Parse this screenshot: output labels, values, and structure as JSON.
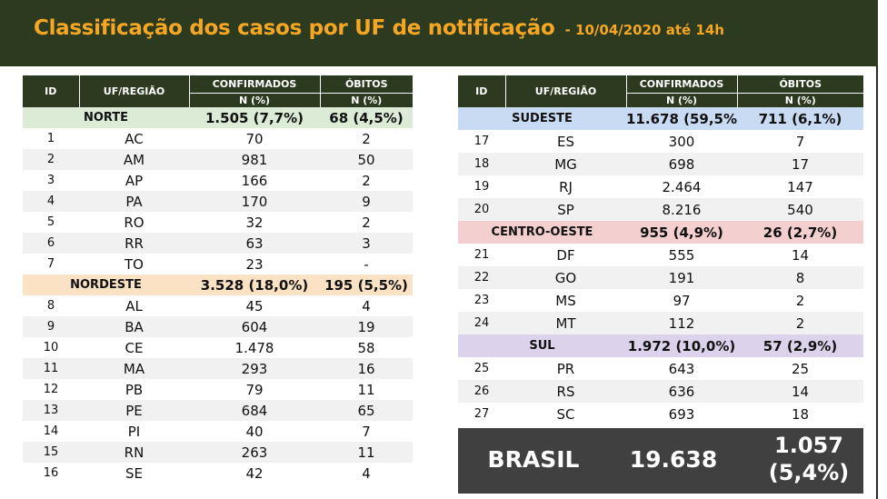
{
  "header": {
    "title": "Classificação dos casos por UF de notificação",
    "subtitle": "- 10/04/2020 até 14h"
  },
  "columns": {
    "id": "ID",
    "uf": "UF/REGIÃO",
    "confirmados": "CONFIRMADOS",
    "obitos": "ÓBITOS",
    "unit": "N (%)"
  },
  "left": {
    "norte": {
      "name": "NORTE",
      "confirmados": "1.505 (7,7%)",
      "obitos": "68 (4,5%)",
      "rows": [
        {
          "id": "1",
          "uf": "AC",
          "confirmados": "70",
          "obitos": "2"
        },
        {
          "id": "2",
          "uf": "AM",
          "confirmados": "981",
          "obitos": "50"
        },
        {
          "id": "3",
          "uf": "AP",
          "confirmados": "166",
          "obitos": "2"
        },
        {
          "id": "4",
          "uf": "PA",
          "confirmados": "170",
          "obitos": "9"
        },
        {
          "id": "5",
          "uf": "RO",
          "confirmados": "32",
          "obitos": "2"
        },
        {
          "id": "6",
          "uf": "RR",
          "confirmados": "63",
          "obitos": "3"
        },
        {
          "id": "7",
          "uf": "TO",
          "confirmados": "23",
          "obitos": "-"
        }
      ]
    },
    "nordeste": {
      "name": "NORDESTE",
      "confirmados": "3.528 (18,0%)",
      "obitos": "195 (5,5%)",
      "rows": [
        {
          "id": "8",
          "uf": "AL",
          "confirmados": "45",
          "obitos": "4"
        },
        {
          "id": "9",
          "uf": "BA",
          "confirmados": "604",
          "obitos": "19"
        },
        {
          "id": "10",
          "uf": "CE",
          "confirmados": "1.478",
          "obitos": "58"
        },
        {
          "id": "11",
          "uf": "MA",
          "confirmados": "293",
          "obitos": "16"
        },
        {
          "id": "12",
          "uf": "PB",
          "confirmados": "79",
          "obitos": "11"
        },
        {
          "id": "13",
          "uf": "PE",
          "confirmados": "684",
          "obitos": "65"
        },
        {
          "id": "14",
          "uf": "PI",
          "confirmados": "40",
          "obitos": "7"
        },
        {
          "id": "15",
          "uf": "RN",
          "confirmados": "263",
          "obitos": "11"
        },
        {
          "id": "16",
          "uf": "SE",
          "confirmados": "42",
          "obitos": "4"
        }
      ]
    }
  },
  "right": {
    "sudeste": {
      "name": "SUDESTE",
      "confirmados": "11.678 (59,5%)",
      "obitos": "711 (6,1%)",
      "rows": [
        {
          "id": "17",
          "uf": "ES",
          "confirmados": "300",
          "obitos": "7"
        },
        {
          "id": "18",
          "uf": "MG",
          "confirmados": "698",
          "obitos": "17"
        },
        {
          "id": "19",
          "uf": "RJ",
          "confirmados": "2.464",
          "obitos": "147"
        },
        {
          "id": "20",
          "uf": "SP",
          "confirmados": "8.216",
          "obitos": "540"
        }
      ]
    },
    "centro_oeste": {
      "name": "CENTRO-OESTE",
      "confirmados": "955 (4,9%)",
      "obitos": "26 (2,7%)",
      "rows": [
        {
          "id": "21",
          "uf": "DF",
          "confirmados": "555",
          "obitos": "14"
        },
        {
          "id": "22",
          "uf": "GO",
          "confirmados": "191",
          "obitos": "8"
        },
        {
          "id": "23",
          "uf": "MS",
          "confirmados": "97",
          "obitos": "2"
        },
        {
          "id": "24",
          "uf": "MT",
          "confirmados": "112",
          "obitos": "2"
        }
      ]
    },
    "sul": {
      "name": "SUL",
      "confirmados": "1.972 (10,0%)",
      "obitos": "57 (2,9%)",
      "rows": [
        {
          "id": "25",
          "uf": "PR",
          "confirmados": "643",
          "obitos": "25"
        },
        {
          "id": "26",
          "uf": "RS",
          "confirmados": "636",
          "obitos": "14"
        },
        {
          "id": "27",
          "uf": "SC",
          "confirmados": "693",
          "obitos": "18"
        }
      ]
    }
  },
  "brasil": {
    "label": "BRASIL",
    "confirmados": "19.638",
    "obitos_n": "1.057",
    "obitos_pct": "(5,4%)"
  },
  "colors": {
    "header_bg": "#2c3a1f",
    "title": "#f5a623",
    "norte": "#dcebd6",
    "nordeste": "#fbe2c5",
    "sudeste": "#c9daf3",
    "centro_oeste": "#f4cfcf",
    "sul": "#ddd2ec",
    "brasil_bg": "#404040"
  }
}
